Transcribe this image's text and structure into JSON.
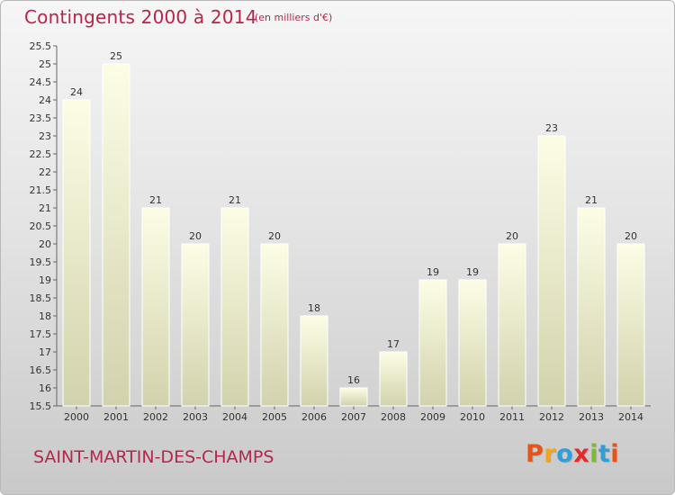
{
  "header": {
    "title": "Contingents 2000 à 2014",
    "unit": "(en milliers d'€)"
  },
  "footer": {
    "commune": "SAINT-MARTIN-DES-CHAMPS",
    "brand": "Proxiti",
    "brand_colors": [
      "#e8531a",
      "#f2a51c",
      "#2f9fd8",
      "#e22b2b",
      "#7cbc2f",
      "#2f9fd8",
      "#e8531a"
    ]
  },
  "colors": {
    "title": "#b5264a",
    "bar_top": "#fdfde6",
    "bar_bottom": "#d2d2ad"
  },
  "chart_data": {
    "type": "bar",
    "title": "Contingents 2000 à 2014",
    "subtitle": "(en milliers d'€)",
    "xlabel": "",
    "ylabel": "",
    "categories": [
      "2000",
      "2001",
      "2002",
      "2003",
      "2004",
      "2005",
      "2006",
      "2007",
      "2008",
      "2009",
      "2010",
      "2011",
      "2012",
      "2013",
      "2014"
    ],
    "values": [
      24,
      25,
      21,
      20,
      21,
      20,
      18,
      16,
      17,
      19,
      19,
      20,
      23,
      21,
      20
    ],
    "ylim": [
      15.5,
      25.5
    ],
    "yticks": [
      "15.5",
      "16",
      "16.5",
      "17",
      "17.5",
      "18",
      "18.5",
      "19",
      "19.5",
      "20",
      "20.5",
      "21",
      "21.5",
      "22",
      "22.5",
      "23",
      "23.5",
      "24",
      "24.5",
      "25",
      "25.5"
    ],
    "grid": false,
    "legend": "none"
  }
}
